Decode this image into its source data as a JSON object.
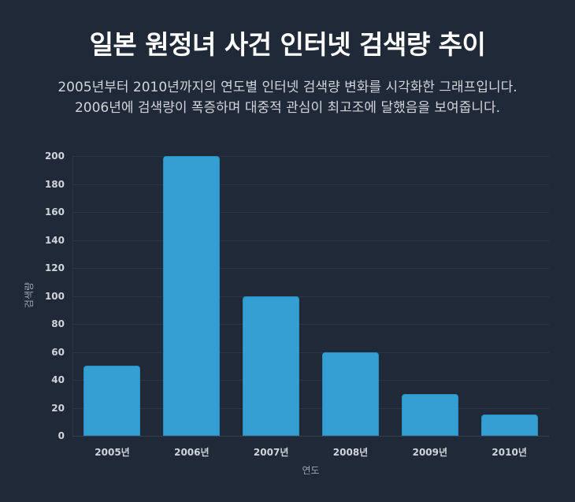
{
  "header": {
    "title": "일본 원정녀 사건 인터넷 검색량 추이",
    "subtitle_line1": "2005년부터 2010년까지의 연도별 인터넷 검색량 변화를 시각화한 그래프입니다.",
    "subtitle_line2": "2006년에 검색량이 폭증하며 대중적 관심이 최고조에 달했음을 보여줍니다."
  },
  "colors": {
    "background": "#1f2937",
    "bar": "#349fd2",
    "grid": "#2b3546",
    "text": "#d1d5db",
    "axis_label": "#9ca3af"
  },
  "chart_data": {
    "type": "bar",
    "title": "일본 원정녀 사건 인터넷 검색량 추이",
    "categories": [
      "2005년",
      "2006년",
      "2007년",
      "2008년",
      "2009년",
      "2010년"
    ],
    "values": [
      50,
      200,
      100,
      60,
      30,
      15
    ],
    "xlabel": "연도",
    "ylabel": "검색량",
    "ylim": [
      0,
      200
    ],
    "yticks": [
      0,
      20,
      40,
      60,
      80,
      100,
      120,
      140,
      160,
      180,
      200
    ],
    "grid": true,
    "legend": false
  }
}
